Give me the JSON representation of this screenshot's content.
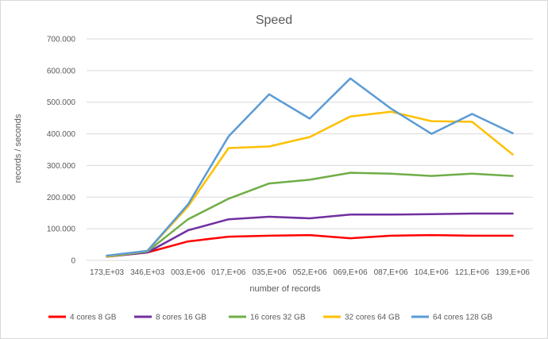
{
  "chart_data": {
    "type": "line",
    "title": "Speed",
    "xlabel": "number of records",
    "ylabel": "records / seconds",
    "ylim": [
      0,
      700000
    ],
    "yticks": [
      0,
      100000,
      200000,
      300000,
      400000,
      500000,
      600000,
      700000
    ],
    "ytick_labels": [
      "0",
      "100.000",
      "200.000",
      "300.000",
      "400.000",
      "500.000",
      "600.000",
      "700.000"
    ],
    "categories": [
      "173,E+03",
      "346,E+03",
      "003,E+06",
      "017,E+06",
      "035,E+06",
      "052,E+06",
      "069,E+06",
      "087,E+06",
      "104,E+06",
      "121,E+06",
      "139,E+06"
    ],
    "grid": true,
    "legend_position": "bottom",
    "series": [
      {
        "name": "4 cores 8 GB",
        "color": "#ff0000",
        "values": [
          12000,
          25000,
          60000,
          75000,
          78000,
          80000,
          70000,
          78000,
          80000,
          78000,
          78000
        ]
      },
      {
        "name": "8 cores 16 GB",
        "color": "#7030a0",
        "values": [
          12000,
          25000,
          95000,
          130000,
          138000,
          133000,
          145000,
          145000,
          146000,
          148000,
          148000
        ]
      },
      {
        "name": "16 cores 32 GB",
        "color": "#70ad47",
        "values": [
          12000,
          28000,
          130000,
          195000,
          243000,
          255000,
          277000,
          274000,
          267000,
          274000,
          267000
        ]
      },
      {
        "name": "32 cores 64 GB",
        "color": "#ffc000",
        "values": [
          13000,
          30000,
          170000,
          355000,
          360000,
          390000,
          455000,
          470000,
          440000,
          438000,
          335000
        ]
      },
      {
        "name": "64 cores 128 GB",
        "color": "#5b9bd5",
        "values": [
          15000,
          30000,
          177000,
          392000,
          525000,
          448000,
          575000,
          480000,
          400000,
          463000,
          402000
        ]
      }
    ]
  }
}
